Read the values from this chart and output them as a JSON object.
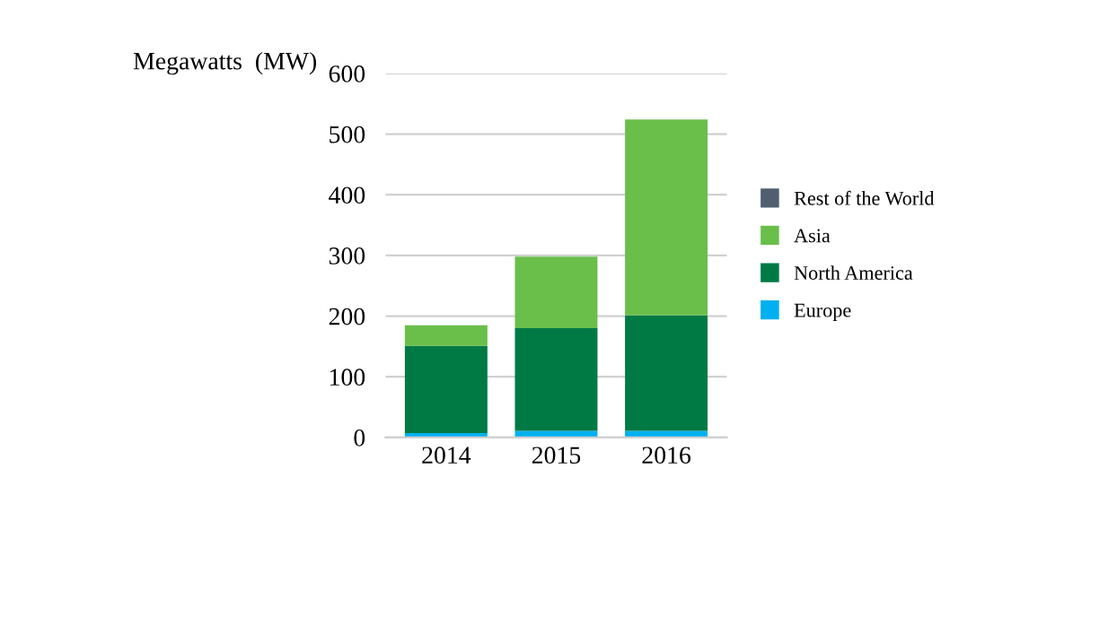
{
  "chart_data": {
    "type": "bar",
    "stacked": true,
    "ylabel": "Megawatts  (MW)",
    "categories": [
      "2014",
      "2015",
      "2016"
    ],
    "series": [
      {
        "name": "Europe",
        "color": "#00b0f0",
        "values": [
          7,
          11,
          11
        ]
      },
      {
        "name": "North America",
        "color": "#007a45",
        "values": [
          144,
          169,
          190
        ]
      },
      {
        "name": "Asia",
        "color": "#6abf4b",
        "values": [
          34,
          118,
          323
        ]
      },
      {
        "name": "Rest of the World",
        "color": "#4f5f6f",
        "values": [
          0,
          0,
          0
        ]
      }
    ],
    "ylim": [
      0,
      600
    ],
    "yticks": [
      0,
      100,
      200,
      300,
      400,
      500,
      600
    ],
    "grid": "y",
    "legend": "right"
  }
}
